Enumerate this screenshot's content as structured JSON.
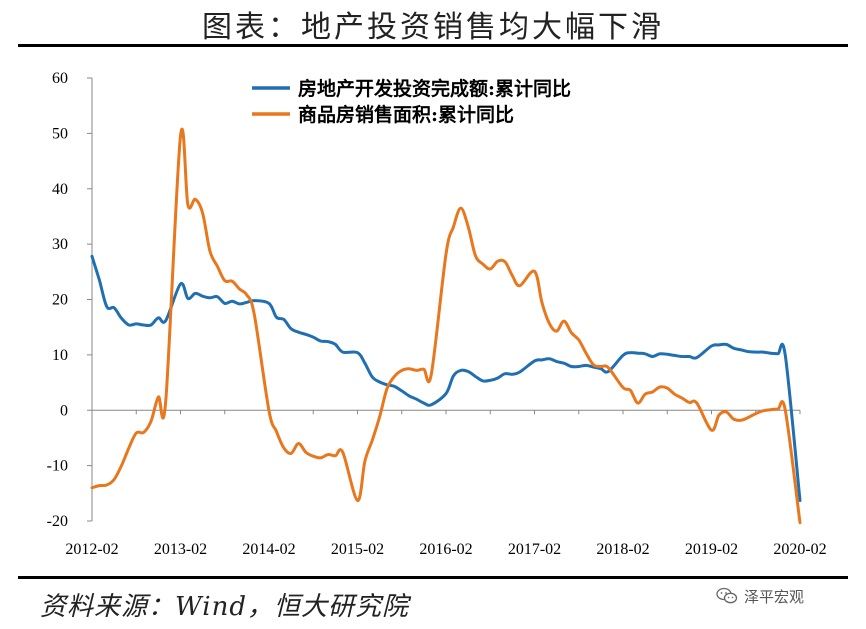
{
  "header": {
    "title": "图表：地产投资销售均大幅下滑"
  },
  "footer": {
    "source": "资料来源：Wind，恒大研究院",
    "watermark": "泽平宏观",
    "watermark_icon": "wechat-icon"
  },
  "chart_data": {
    "type": "line",
    "title": "图表：地产投资销售均大幅下滑",
    "xlabel": "",
    "ylabel": "",
    "ylim": [
      -20,
      60
    ],
    "yticks": [
      60,
      50,
      40,
      30,
      20,
      10,
      0,
      -10,
      -20
    ],
    "xlim": [
      "2012-02",
      "2020-02"
    ],
    "xticks": [
      "2012-02",
      "2013-02",
      "2014-02",
      "2015-02",
      "2016-02",
      "2017-02",
      "2018-02",
      "2019-02",
      "2020-02"
    ],
    "grid": false,
    "legend_position": "top-center",
    "series": [
      {
        "name": "房地产开发投资完成额:累计同比",
        "color": "#1F6FB2",
        "points": [
          [
            "2012-02",
            27.8
          ],
          [
            "2012-03",
            23.5
          ],
          [
            "2012-04",
            18.7
          ],
          [
            "2012-05",
            18.5
          ],
          [
            "2012-06",
            16.6
          ],
          [
            "2012-07",
            15.4
          ],
          [
            "2012-08",
            15.6
          ],
          [
            "2012-09",
            15.4
          ],
          [
            "2012-10",
            15.4
          ],
          [
            "2012-11",
            16.7
          ],
          [
            "2012-12",
            16.2
          ],
          [
            "2013-02",
            22.8
          ],
          [
            "2013-03",
            20.2
          ],
          [
            "2013-04",
            21.1
          ],
          [
            "2013-05",
            20.6
          ],
          [
            "2013-06",
            20.3
          ],
          [
            "2013-07",
            20.5
          ],
          [
            "2013-08",
            19.3
          ],
          [
            "2013-09",
            19.7
          ],
          [
            "2013-10",
            19.2
          ],
          [
            "2013-11",
            19.5
          ],
          [
            "2013-12",
            19.8
          ],
          [
            "2014-02",
            19.3
          ],
          [
            "2014-03",
            16.8
          ],
          [
            "2014-04",
            16.4
          ],
          [
            "2014-05",
            14.7
          ],
          [
            "2014-06",
            14.1
          ],
          [
            "2014-07",
            13.7
          ],
          [
            "2014-08",
            13.2
          ],
          [
            "2014-09",
            12.5
          ],
          [
            "2014-10",
            12.4
          ],
          [
            "2014-11",
            11.9
          ],
          [
            "2014-12",
            10.5
          ],
          [
            "2015-02",
            10.4
          ],
          [
            "2015-03",
            8.5
          ],
          [
            "2015-04",
            6.0
          ],
          [
            "2015-05",
            5.1
          ],
          [
            "2015-06",
            4.6
          ],
          [
            "2015-07",
            4.3
          ],
          [
            "2015-08",
            3.5
          ],
          [
            "2015-09",
            2.6
          ],
          [
            "2015-10",
            2.0
          ],
          [
            "2015-11",
            1.3
          ],
          [
            "2015-12",
            1.0
          ],
          [
            "2016-02",
            3.0
          ],
          [
            "2016-03",
            6.2
          ],
          [
            "2016-04",
            7.2
          ],
          [
            "2016-05",
            7.0
          ],
          [
            "2016-06",
            6.1
          ],
          [
            "2016-07",
            5.3
          ],
          [
            "2016-08",
            5.4
          ],
          [
            "2016-09",
            5.8
          ],
          [
            "2016-10",
            6.6
          ],
          [
            "2016-11",
            6.5
          ],
          [
            "2016-12",
            6.9
          ],
          [
            "2017-02",
            8.9
          ],
          [
            "2017-03",
            9.1
          ],
          [
            "2017-04",
            9.3
          ],
          [
            "2017-05",
            8.8
          ],
          [
            "2017-06",
            8.5
          ],
          [
            "2017-07",
            7.9
          ],
          [
            "2017-08",
            7.9
          ],
          [
            "2017-09",
            8.1
          ],
          [
            "2017-10",
            7.8
          ],
          [
            "2017-11",
            7.5
          ],
          [
            "2017-12",
            7.0
          ],
          [
            "2018-02",
            9.9
          ],
          [
            "2018-03",
            10.4
          ],
          [
            "2018-04",
            10.3
          ],
          [
            "2018-05",
            10.2
          ],
          [
            "2018-06",
            9.7
          ],
          [
            "2018-07",
            10.2
          ],
          [
            "2018-08",
            10.1
          ],
          [
            "2018-09",
            9.9
          ],
          [
            "2018-10",
            9.7
          ],
          [
            "2018-11",
            9.7
          ],
          [
            "2018-12",
            9.5
          ],
          [
            "2019-02",
            11.6
          ],
          [
            "2019-03",
            11.8
          ],
          [
            "2019-04",
            11.9
          ],
          [
            "2019-05",
            11.2
          ],
          [
            "2019-06",
            10.9
          ],
          [
            "2019-07",
            10.6
          ],
          [
            "2019-08",
            10.5
          ],
          [
            "2019-09",
            10.5
          ],
          [
            "2019-10",
            10.3
          ],
          [
            "2019-11",
            10.2
          ],
          [
            "2019-12",
            9.9
          ],
          [
            "2020-02",
            -16.3
          ]
        ]
      },
      {
        "name": "商品房销售面积:累计同比",
        "color": "#E8771E",
        "points": [
          [
            "2012-02",
            -14.0
          ],
          [
            "2012-03",
            -13.6
          ],
          [
            "2012-04",
            -13.5
          ],
          [
            "2012-05",
            -12.5
          ],
          [
            "2012-06",
            -10.0
          ],
          [
            "2012-07",
            -6.8
          ],
          [
            "2012-08",
            -4.1
          ],
          [
            "2012-09",
            -4.0
          ],
          [
            "2012-10",
            -2.0
          ],
          [
            "2012-11",
            2.4
          ],
          [
            "2012-12",
            1.8
          ],
          [
            "2013-02",
            49.5
          ],
          [
            "2013-03",
            37.1
          ],
          [
            "2013-04",
            38.1
          ],
          [
            "2013-05",
            35.6
          ],
          [
            "2013-06",
            28.7
          ],
          [
            "2013-07",
            26.0
          ],
          [
            "2013-08",
            23.4
          ],
          [
            "2013-09",
            23.3
          ],
          [
            "2013-10",
            21.9
          ],
          [
            "2013-11",
            20.8
          ],
          [
            "2013-12",
            17.3
          ],
          [
            "2014-02",
            -0.1
          ],
          [
            "2014-03",
            -3.8
          ],
          [
            "2014-04",
            -6.8
          ],
          [
            "2014-05",
            -7.8
          ],
          [
            "2014-06",
            -6.0
          ],
          [
            "2014-07",
            -7.6
          ],
          [
            "2014-08",
            -8.3
          ],
          [
            "2014-09",
            -8.6
          ],
          [
            "2014-10",
            -8.0
          ],
          [
            "2014-11",
            -8.2
          ],
          [
            "2014-12",
            -7.6
          ],
          [
            "2015-02",
            -16.3
          ],
          [
            "2015-03",
            -9.2
          ],
          [
            "2015-04",
            -5.4
          ],
          [
            "2015-05",
            -1.2
          ],
          [
            "2015-06",
            3.9
          ],
          [
            "2015-07",
            6.1
          ],
          [
            "2015-08",
            7.2
          ],
          [
            "2015-09",
            7.5
          ],
          [
            "2015-10",
            7.2
          ],
          [
            "2015-11",
            7.4
          ],
          [
            "2015-12",
            6.5
          ],
          [
            "2016-02",
            28.2
          ],
          [
            "2016-03",
            33.1
          ],
          [
            "2016-04",
            36.5
          ],
          [
            "2016-05",
            33.2
          ],
          [
            "2016-06",
            27.9
          ],
          [
            "2016-07",
            26.4
          ],
          [
            "2016-08",
            25.5
          ],
          [
            "2016-09",
            26.9
          ],
          [
            "2016-10",
            26.8
          ],
          [
            "2016-11",
            24.3
          ],
          [
            "2016-12",
            22.5
          ],
          [
            "2017-02",
            25.1
          ],
          [
            "2017-03",
            19.5
          ],
          [
            "2017-04",
            15.7
          ],
          [
            "2017-05",
            14.3
          ],
          [
            "2017-06",
            16.1
          ],
          [
            "2017-07",
            14.0
          ],
          [
            "2017-08",
            12.7
          ],
          [
            "2017-09",
            10.3
          ],
          [
            "2017-10",
            8.2
          ],
          [
            "2017-11",
            7.9
          ],
          [
            "2017-12",
            7.7
          ],
          [
            "2018-02",
            4.1
          ],
          [
            "2018-03",
            3.6
          ],
          [
            "2018-04",
            1.3
          ],
          [
            "2018-05",
            2.9
          ],
          [
            "2018-06",
            3.3
          ],
          [
            "2018-07",
            4.2
          ],
          [
            "2018-08",
            4.0
          ],
          [
            "2018-09",
            2.9
          ],
          [
            "2018-10",
            2.2
          ],
          [
            "2018-11",
            1.4
          ],
          [
            "2018-12",
            1.3
          ],
          [
            "2019-02",
            -3.6
          ],
          [
            "2019-03",
            -0.9
          ],
          [
            "2019-04",
            -0.3
          ],
          [
            "2019-05",
            -1.6
          ],
          [
            "2019-06",
            -1.8
          ],
          [
            "2019-07",
            -1.3
          ],
          [
            "2019-08",
            -0.6
          ],
          [
            "2019-09",
            -0.1
          ],
          [
            "2019-10",
            0.1
          ],
          [
            "2019-11",
            0.2
          ],
          [
            "2019-12",
            0.0
          ],
          [
            "2020-02",
            -20.3
          ]
        ]
      }
    ]
  }
}
